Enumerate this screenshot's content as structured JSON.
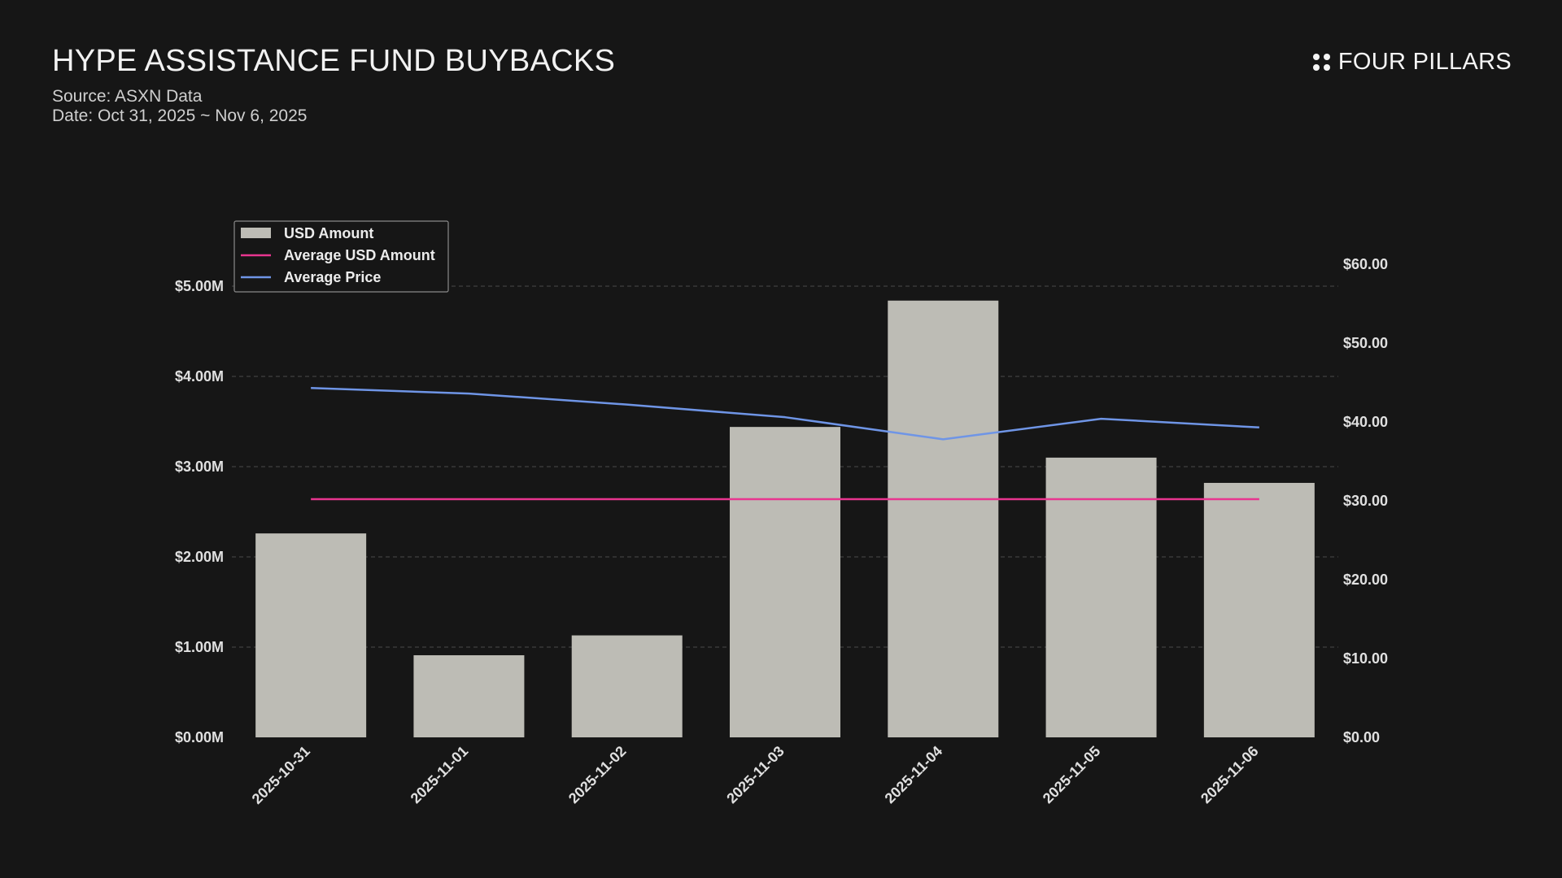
{
  "header": {
    "title": "HYPE ASSISTANCE FUND BUYBACKS",
    "source": "Source: ASXN Data",
    "date": "Date: Oct 31, 2025 ~ Nov 6, 2025",
    "brand": "FOUR PILLARS"
  },
  "chart_data": {
    "type": "bar",
    "categories": [
      "2025-10-31",
      "2025-11-01",
      "2025-11-02",
      "2025-11-03",
      "2025-11-04",
      "2025-11-05",
      "2025-11-06"
    ],
    "series": [
      {
        "name": "USD Amount",
        "type": "bar",
        "axis": "left",
        "values": [
          2.26,
          0.91,
          1.13,
          3.44,
          4.84,
          3.1,
          2.82
        ]
      },
      {
        "name": "Average USD Amount",
        "type": "line",
        "axis": "left",
        "values": [
          2.64,
          2.64,
          2.64,
          2.64,
          2.64,
          2.64,
          2.64
        ]
      },
      {
        "name": "Average Price",
        "type": "line",
        "axis": "right",
        "values": [
          44.3,
          43.6,
          42.2,
          40.6,
          37.8,
          40.4,
          39.3
        ]
      }
    ],
    "left_axis": {
      "ylim": [
        0,
        5.0
      ],
      "ticks": [
        0,
        1,
        2,
        3,
        4,
        5
      ],
      "tick_labels": [
        "$0.00M",
        "$1.00M",
        "$2.00M",
        "$3.00M",
        "$4.00M",
        "$5.00M"
      ]
    },
    "right_axis": {
      "ylim": [
        0,
        60
      ],
      "ticks": [
        0,
        10,
        20,
        30,
        40,
        50,
        60
      ],
      "tick_labels": [
        "$0.00",
        "$10.00",
        "$20.00",
        "$30.00",
        "$40.00",
        "$50.00",
        "$60.00"
      ]
    },
    "grid": true,
    "legend_position": "top-left",
    "colors": {
      "bar": "#bdbcb5",
      "avg_amount": "#e8358f",
      "avg_price": "#6f95e6",
      "grid": "#4a4a4a"
    }
  }
}
